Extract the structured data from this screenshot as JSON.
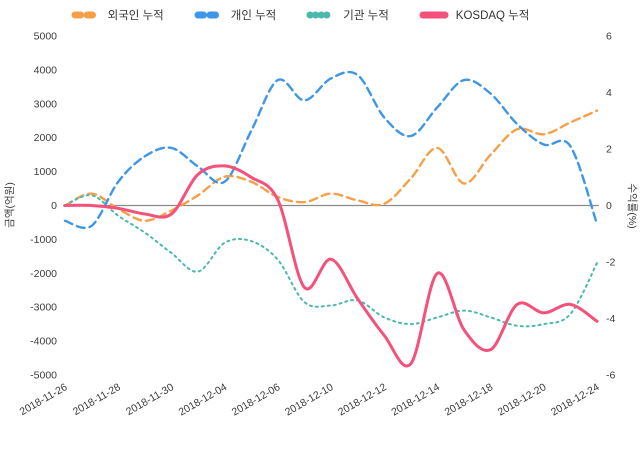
{
  "chart_data": {
    "type": "line",
    "title": "",
    "x": [
      "2018-11-26",
      "2018-11-27",
      "2018-11-28",
      "2018-11-29",
      "2018-11-30",
      "2018-12-03",
      "2018-12-04",
      "2018-12-05",
      "2018-12-06",
      "2018-12-07",
      "2018-12-10",
      "2018-12-11",
      "2018-12-12",
      "2018-12-13",
      "2018-12-14",
      "2018-12-17",
      "2018-12-18",
      "2018-12-19",
      "2018-12-20",
      "2018-12-21",
      "2018-12-24"
    ],
    "x_tick_every": 2,
    "series": [
      {
        "key": "foreign",
        "name": "외국인 누적",
        "axis": "left",
        "color": "#F5A049",
        "style": "dashed",
        "width": 2.4,
        "values": [
          0,
          350,
          -100,
          -450,
          -150,
          300,
          850,
          700,
          250,
          100,
          350,
          150,
          50,
          800,
          1700,
          650,
          1500,
          2250,
          2100,
          2450,
          2800
        ]
      },
      {
        "key": "individual",
        "name": "개인 누적",
        "axis": "left",
        "color": "#3E97E6",
        "style": "dashed",
        "width": 2.4,
        "values": [
          -450,
          -600,
          700,
          1450,
          1700,
          1150,
          700,
          2200,
          3700,
          3100,
          3750,
          3850,
          2600,
          2050,
          2900,
          3700,
          3300,
          2400,
          1800,
          1750,
          -550
        ]
      },
      {
        "key": "institution",
        "name": "기관 누적",
        "axis": "left",
        "color": "#4BB8AE",
        "style": "dotted",
        "width": 2,
        "values": [
          0,
          300,
          -300,
          -800,
          -1400,
          -1950,
          -1100,
          -1050,
          -1600,
          -2850,
          -2950,
          -2800,
          -3300,
          -3500,
          -3300,
          -3100,
          -3300,
          -3550,
          -3500,
          -3200,
          -1700
        ]
      },
      {
        "key": "kosdaq",
        "name": "KOSDAQ 누적",
        "axis": "right",
        "color": "#F4517B",
        "style": "solid",
        "width": 3,
        "values": [
          0,
          0,
          -0.1,
          -0.3,
          -0.3,
          1.1,
          1.4,
          1.0,
          0.2,
          -2.9,
          -1.9,
          -3.3,
          -4.6,
          -5.6,
          -2.4,
          -4.4,
          -5.1,
          -3.5,
          -3.8,
          -3.5,
          -4.1
        ]
      }
    ],
    "left_axis": {
      "label": "금액(억원)",
      "min": -5000,
      "max": 5000,
      "ticks": [
        5000,
        4000,
        3000,
        2000,
        1000,
        0,
        -1000,
        -2000,
        -3000,
        -4000,
        -5000
      ]
    },
    "right_axis": {
      "label": "수익률(%)",
      "min": -6,
      "max": 6,
      "ticks": [
        6,
        4,
        2,
        0,
        -2,
        -4,
        -6
      ]
    },
    "legend_position": "top",
    "grid": false,
    "zero_line": true,
    "colors": {
      "zero_line": "#8A8A8A",
      "text": "#3B3B3B"
    }
  }
}
